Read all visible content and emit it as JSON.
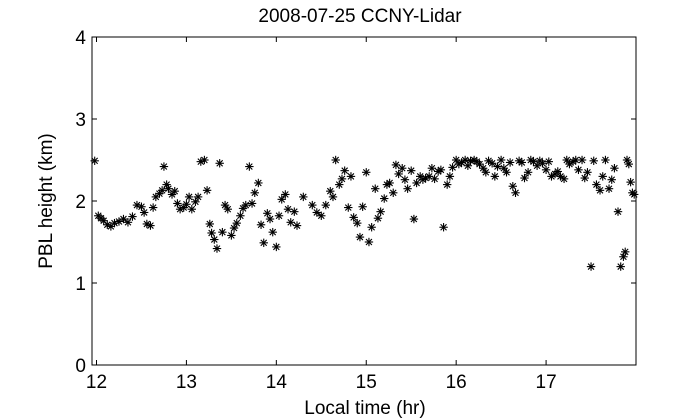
{
  "chart_data": {
    "type": "scatter",
    "title": "2008-07-25 CCNY-Lidar",
    "xlabel": "Local time (hr)",
    "ylabel": "PBL height (km)",
    "xlim": [
      11.95,
      18.0
    ],
    "ylim": [
      0,
      4
    ],
    "xticks": [
      12,
      13,
      14,
      15,
      16,
      17
    ],
    "yticks": [
      0,
      1,
      2,
      3,
      4
    ],
    "grid": false,
    "marker": "asterisk",
    "marker_color": "#000000",
    "series": [
      {
        "points": [
          [
            11.98,
            2.49
          ],
          [
            12.02,
            1.82
          ],
          [
            12.05,
            1.79
          ],
          [
            12.08,
            1.76
          ],
          [
            12.12,
            1.71
          ],
          [
            12.16,
            1.69
          ],
          [
            12.2,
            1.73
          ],
          [
            12.25,
            1.75
          ],
          [
            12.3,
            1.78
          ],
          [
            12.35,
            1.74
          ],
          [
            12.4,
            1.81
          ],
          [
            12.45,
            1.95
          ],
          [
            12.5,
            1.93
          ],
          [
            12.53,
            1.86
          ],
          [
            12.56,
            1.72
          ],
          [
            12.6,
            1.7
          ],
          [
            12.63,
            1.92
          ],
          [
            12.66,
            2.05
          ],
          [
            12.7,
            2.09
          ],
          [
            12.73,
            2.13
          ],
          [
            12.75,
            2.42
          ],
          [
            12.78,
            2.2
          ],
          [
            12.8,
            2.15
          ],
          [
            12.84,
            2.08
          ],
          [
            12.87,
            2.12
          ],
          [
            12.9,
            1.97
          ],
          [
            12.93,
            1.9
          ],
          [
            12.97,
            1.92
          ],
          [
            13.0,
            1.96
          ],
          [
            13.03,
            2.05
          ],
          [
            13.06,
            1.9
          ],
          [
            13.1,
            1.99
          ],
          [
            13.13,
            2.05
          ],
          [
            13.16,
            2.48
          ],
          [
            13.2,
            2.5
          ],
          [
            13.23,
            2.13
          ],
          [
            13.26,
            1.72
          ],
          [
            13.28,
            1.61
          ],
          [
            13.31,
            1.53
          ],
          [
            13.34,
            1.42
          ],
          [
            13.37,
            2.46
          ],
          [
            13.4,
            1.62
          ],
          [
            13.43,
            1.95
          ],
          [
            13.46,
            1.9
          ],
          [
            13.5,
            1.58
          ],
          [
            13.53,
            1.67
          ],
          [
            13.56,
            1.73
          ],
          [
            13.6,
            1.82
          ],
          [
            13.63,
            1.91
          ],
          [
            13.66,
            1.95
          ],
          [
            13.7,
            2.42
          ],
          [
            13.73,
            1.97
          ],
          [
            13.76,
            2.1
          ],
          [
            13.8,
            2.22
          ],
          [
            13.83,
            1.71
          ],
          [
            13.86,
            1.49
          ],
          [
            13.9,
            1.85
          ],
          [
            13.93,
            1.78
          ],
          [
            13.96,
            1.62
          ],
          [
            14.0,
            1.44
          ],
          [
            14.03,
            1.82
          ],
          [
            14.06,
            2.02
          ],
          [
            14.1,
            2.08
          ],
          [
            14.13,
            1.9
          ],
          [
            14.16,
            1.74
          ],
          [
            14.2,
            1.87
          ],
          [
            14.23,
            1.7
          ],
          [
            14.3,
            2.05
          ],
          [
            14.4,
            1.95
          ],
          [
            14.45,
            1.86
          ],
          [
            14.5,
            1.82
          ],
          [
            14.55,
            1.95
          ],
          [
            14.6,
            2.12
          ],
          [
            14.63,
            2.05
          ],
          [
            14.66,
            2.5
          ],
          [
            14.7,
            2.2
          ],
          [
            14.73,
            2.27
          ],
          [
            14.76,
            2.37
          ],
          [
            14.8,
            1.92
          ],
          [
            14.83,
            2.3
          ],
          [
            14.86,
            1.8
          ],
          [
            14.9,
            1.73
          ],
          [
            14.93,
            1.56
          ],
          [
            14.96,
            1.93
          ],
          [
            15.0,
            2.35
          ],
          [
            15.03,
            1.5
          ],
          [
            15.06,
            1.68
          ],
          [
            15.1,
            2.15
          ],
          [
            15.13,
            1.79
          ],
          [
            15.16,
            1.87
          ],
          [
            15.2,
            2.03
          ],
          [
            15.23,
            2.2
          ],
          [
            15.26,
            2.22
          ],
          [
            15.3,
            2.1
          ],
          [
            15.33,
            2.44
          ],
          [
            15.36,
            2.33
          ],
          [
            15.4,
            2.4
          ],
          [
            15.43,
            2.26
          ],
          [
            15.46,
            2.15
          ],
          [
            15.5,
            2.37
          ],
          [
            15.53,
            1.78
          ],
          [
            15.56,
            2.22
          ],
          [
            15.6,
            2.3
          ],
          [
            15.63,
            2.26
          ],
          [
            15.66,
            2.28
          ],
          [
            15.7,
            2.3
          ],
          [
            15.73,
            2.4
          ],
          [
            15.76,
            2.27
          ],
          [
            15.8,
            2.36
          ],
          [
            15.83,
            2.38
          ],
          [
            15.86,
            1.68
          ],
          [
            15.9,
            2.2
          ],
          [
            15.93,
            2.3
          ],
          [
            15.96,
            2.41
          ],
          [
            16.0,
            2.5
          ],
          [
            16.03,
            2.45
          ],
          [
            16.06,
            2.47
          ],
          [
            16.1,
            2.5
          ],
          [
            16.13,
            2.43
          ],
          [
            16.16,
            2.49
          ],
          [
            16.2,
            2.5
          ],
          [
            16.23,
            2.48
          ],
          [
            16.26,
            2.45
          ],
          [
            16.3,
            2.4
          ],
          [
            16.33,
            2.35
          ],
          [
            16.36,
            2.49
          ],
          [
            16.4,
            2.46
          ],
          [
            16.43,
            2.3
          ],
          [
            16.46,
            2.42
          ],
          [
            16.5,
            2.5
          ],
          [
            16.53,
            2.4
          ],
          [
            16.56,
            2.35
          ],
          [
            16.6,
            2.47
          ],
          [
            16.63,
            2.18
          ],
          [
            16.66,
            2.1
          ],
          [
            16.7,
            2.49
          ],
          [
            16.73,
            2.47
          ],
          [
            16.76,
            2.28
          ],
          [
            16.8,
            2.35
          ],
          [
            16.83,
            2.5
          ],
          [
            16.86,
            2.48
          ],
          [
            16.9,
            2.43
          ],
          [
            16.93,
            2.49
          ],
          [
            16.96,
            2.46
          ],
          [
            17.0,
            2.38
          ],
          [
            17.03,
            2.48
          ],
          [
            17.06,
            2.3
          ],
          [
            17.1,
            2.33
          ],
          [
            17.13,
            2.36
          ],
          [
            17.16,
            2.3
          ],
          [
            17.2,
            2.27
          ],
          [
            17.23,
            2.5
          ],
          [
            17.26,
            2.45
          ],
          [
            17.3,
            2.48
          ],
          [
            17.33,
            2.5
          ],
          [
            17.36,
            2.38
          ],
          [
            17.4,
            2.5
          ],
          [
            17.43,
            2.28
          ],
          [
            17.46,
            2.35
          ],
          [
            17.5,
            1.2
          ],
          [
            17.53,
            2.49
          ],
          [
            17.56,
            2.2
          ],
          [
            17.6,
            2.13
          ],
          [
            17.63,
            2.3
          ],
          [
            17.66,
            2.5
          ],
          [
            17.7,
            2.15
          ],
          [
            17.73,
            2.26
          ],
          [
            17.76,
            2.4
          ],
          [
            17.8,
            1.87
          ],
          [
            17.83,
            1.2
          ],
          [
            17.86,
            1.32
          ],
          [
            17.88,
            1.38
          ],
          [
            17.9,
            2.5
          ],
          [
            17.92,
            2.45
          ],
          [
            17.94,
            2.23
          ],
          [
            17.96,
            2.1
          ],
          [
            17.98,
            2.08
          ]
        ]
      }
    ]
  }
}
